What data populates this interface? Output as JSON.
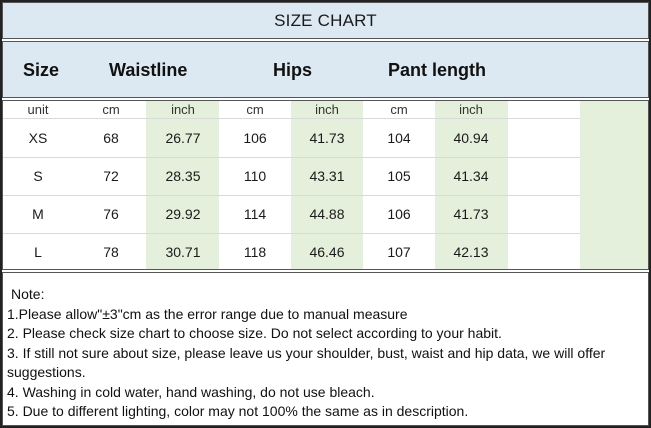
{
  "title": "SIZE CHART",
  "headers": {
    "size": "Size",
    "waistline": "Waistline",
    "hips": "Hips",
    "pant_length": "Pant length"
  },
  "unit_row": [
    "unit",
    "cm",
    "inch",
    "cm",
    "inch",
    "cm",
    "inch"
  ],
  "rows": [
    [
      "XS",
      "68",
      "26.77",
      "106",
      "41.73",
      "104",
      "40.94"
    ],
    [
      "S",
      "72",
      "28.35",
      "110",
      "43.31",
      "105",
      "41.34"
    ],
    [
      "M",
      "76",
      "29.92",
      "114",
      "44.88",
      "106",
      "41.73"
    ],
    [
      "L",
      "78",
      "30.71",
      "118",
      "46.46",
      "107",
      "42.13"
    ]
  ],
  "notes": {
    "heading": "Note:",
    "lines": [
      "1.Please allow\"±3\"cm as the error range due to manual measure",
      "2. Please check size chart to choose size. Do not select according to your habit.",
      "3. If still not sure about size, please leave us your shoulder, bust, waist and hip data, we will offer suggestions.",
      "4. Washing in cold water, hand washing, do not use bleach.",
      "5. Due to different lighting, color may not 100% the same as in description."
    ]
  },
  "colors": {
    "header_bg": "#dce8f2",
    "inch_column_bg": "#e4f0dc"
  }
}
